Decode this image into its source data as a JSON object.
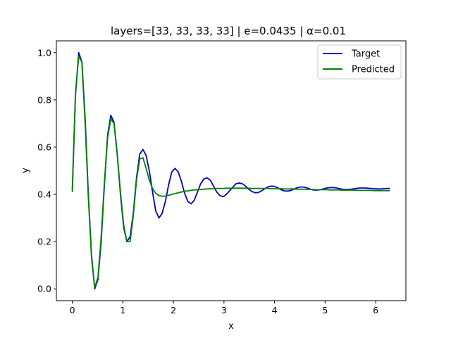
{
  "chart_data": {
    "type": "line",
    "title": "layers=[33, 33, 33, 33] | e=0.0435 | α=0.01",
    "xlabel": "x",
    "ylabel": "y",
    "xlim": [
      -0.315,
      6.598
    ],
    "ylim": [
      -0.05,
      1.05
    ],
    "xticks": [
      0,
      1,
      2,
      3,
      4,
      5,
      6
    ],
    "yticks": [
      0.0,
      0.2,
      0.4,
      0.6,
      0.8,
      1.0
    ],
    "xtick_labels": [
      "0",
      "1",
      "2",
      "3",
      "4",
      "5",
      "6"
    ],
    "ytick_labels": [
      "0.0",
      "0.2",
      "0.4",
      "0.6",
      "0.8",
      "1.0"
    ],
    "grid": false,
    "legend": "top-right",
    "series": [
      {
        "name": "Target",
        "color": "#0000cc",
        "x": [
          0.0,
          0.063,
          0.127,
          0.19,
          0.254,
          0.317,
          0.381,
          0.444,
          0.508,
          0.571,
          0.635,
          0.698,
          0.762,
          0.825,
          0.889,
          0.952,
          1.016,
          1.079,
          1.143,
          1.206,
          1.27,
          1.333,
          1.397,
          1.46,
          1.523,
          1.587,
          1.65,
          1.714,
          1.777,
          1.841,
          1.904,
          1.968,
          2.031,
          2.095,
          2.158,
          2.221,
          2.285,
          2.348,
          2.412,
          2.475,
          2.539,
          2.602,
          2.666,
          2.729,
          2.793,
          2.856,
          2.92,
          2.983,
          3.046,
          3.11,
          3.173,
          3.237,
          3.3,
          3.364,
          3.427,
          3.491,
          3.554,
          3.618,
          3.681,
          3.745,
          3.808,
          3.871,
          3.935,
          3.998,
          4.062,
          4.125,
          4.189,
          4.252,
          4.316,
          4.379,
          4.443,
          4.506,
          4.57,
          4.633,
          4.696,
          4.76,
          4.823,
          4.887,
          4.95,
          5.014,
          5.077,
          5.141,
          5.204,
          5.268,
          5.331,
          5.395,
          5.458,
          5.521,
          5.585,
          5.648,
          5.712,
          5.775,
          5.839,
          5.902,
          5.966,
          6.029,
          6.093,
          6.156,
          6.22,
          6.283
        ],
        "y": [
          0.42,
          0.82,
          1.0,
          0.96,
          0.72,
          0.4,
          0.14,
          0.0,
          0.04,
          0.2,
          0.44,
          0.65,
          0.735,
          0.705,
          0.57,
          0.4,
          0.26,
          0.2,
          0.22,
          0.32,
          0.47,
          0.57,
          0.59,
          0.565,
          0.5,
          0.41,
          0.33,
          0.3,
          0.32,
          0.37,
          0.44,
          0.495,
          0.51,
          0.495,
          0.455,
          0.405,
          0.37,
          0.36,
          0.375,
          0.41,
          0.445,
          0.465,
          0.47,
          0.46,
          0.435,
          0.41,
          0.395,
          0.39,
          0.4,
          0.415,
          0.43,
          0.445,
          0.448,
          0.445,
          0.435,
          0.422,
          0.412,
          0.407,
          0.408,
          0.415,
          0.424,
          0.432,
          0.435,
          0.434,
          0.428,
          0.42,
          0.415,
          0.414,
          0.416,
          0.422,
          0.428,
          0.431,
          0.431,
          0.428,
          0.423,
          0.419,
          0.418,
          0.419,
          0.422,
          0.426,
          0.428,
          0.429,
          0.428,
          0.425,
          0.422,
          0.421,
          0.421,
          0.422,
          0.424,
          0.426,
          0.427,
          0.427,
          0.426,
          0.425,
          0.424,
          0.423,
          0.423,
          0.424,
          0.425,
          0.425
        ]
      },
      {
        "name": "Predicted",
        "color": "#008000",
        "x": [
          0.0,
          0.063,
          0.127,
          0.19,
          0.254,
          0.317,
          0.381,
          0.444,
          0.508,
          0.571,
          0.635,
          0.698,
          0.762,
          0.825,
          0.889,
          0.952,
          1.016,
          1.079,
          1.143,
          1.206,
          1.27,
          1.333,
          1.397,
          1.46,
          1.523,
          1.587,
          1.65,
          1.714,
          1.777,
          1.841,
          1.904,
          1.968,
          2.031,
          2.095,
          2.158,
          2.221,
          2.285,
          2.348,
          2.412,
          2.475,
          2.539,
          2.602,
          2.666,
          2.729,
          2.793,
          2.856,
          2.92,
          2.983,
          3.046,
          3.11,
          3.173,
          3.237,
          3.3,
          3.364,
          3.427,
          3.491,
          3.554,
          3.618,
          3.681,
          3.745,
          3.808,
          3.871,
          3.935,
          3.998,
          4.062,
          4.125,
          4.189,
          4.252,
          4.316,
          4.379,
          4.443,
          4.506,
          4.57,
          4.633,
          4.696,
          4.76,
          4.823,
          4.887,
          4.95,
          5.014,
          5.077,
          5.141,
          5.204,
          5.268,
          5.331,
          5.395,
          5.458,
          5.521,
          5.585,
          5.648,
          5.712,
          5.775,
          5.839,
          5.902,
          5.966,
          6.029,
          6.093,
          6.156,
          6.22,
          6.283
        ],
        "y": [
          0.41,
          0.83,
          0.985,
          0.96,
          0.7,
          0.39,
          0.13,
          0.005,
          0.05,
          0.22,
          0.45,
          0.64,
          0.72,
          0.7,
          0.57,
          0.41,
          0.27,
          0.2,
          0.2,
          0.31,
          0.46,
          0.55,
          0.555,
          0.51,
          0.46,
          0.425,
          0.405,
          0.395,
          0.392,
          0.393,
          0.396,
          0.4,
          0.403,
          0.407,
          0.41,
          0.413,
          0.415,
          0.417,
          0.419,
          0.42,
          0.421,
          0.422,
          0.423,
          0.424,
          0.424,
          0.425,
          0.425,
          0.425,
          0.426,
          0.426,
          0.426,
          0.426,
          0.426,
          0.426,
          0.426,
          0.426,
          0.425,
          0.425,
          0.425,
          0.425,
          0.425,
          0.425,
          0.424,
          0.424,
          0.424,
          0.424,
          0.423,
          0.423,
          0.423,
          0.423,
          0.422,
          0.422,
          0.422,
          0.421,
          0.421,
          0.421,
          0.42,
          0.42,
          0.42,
          0.42,
          0.419,
          0.419,
          0.419,
          0.419,
          0.418,
          0.418,
          0.418,
          0.418,
          0.418,
          0.417,
          0.417,
          0.417,
          0.417,
          0.417,
          0.416,
          0.416,
          0.416,
          0.416,
          0.416,
          0.416
        ]
      }
    ]
  }
}
